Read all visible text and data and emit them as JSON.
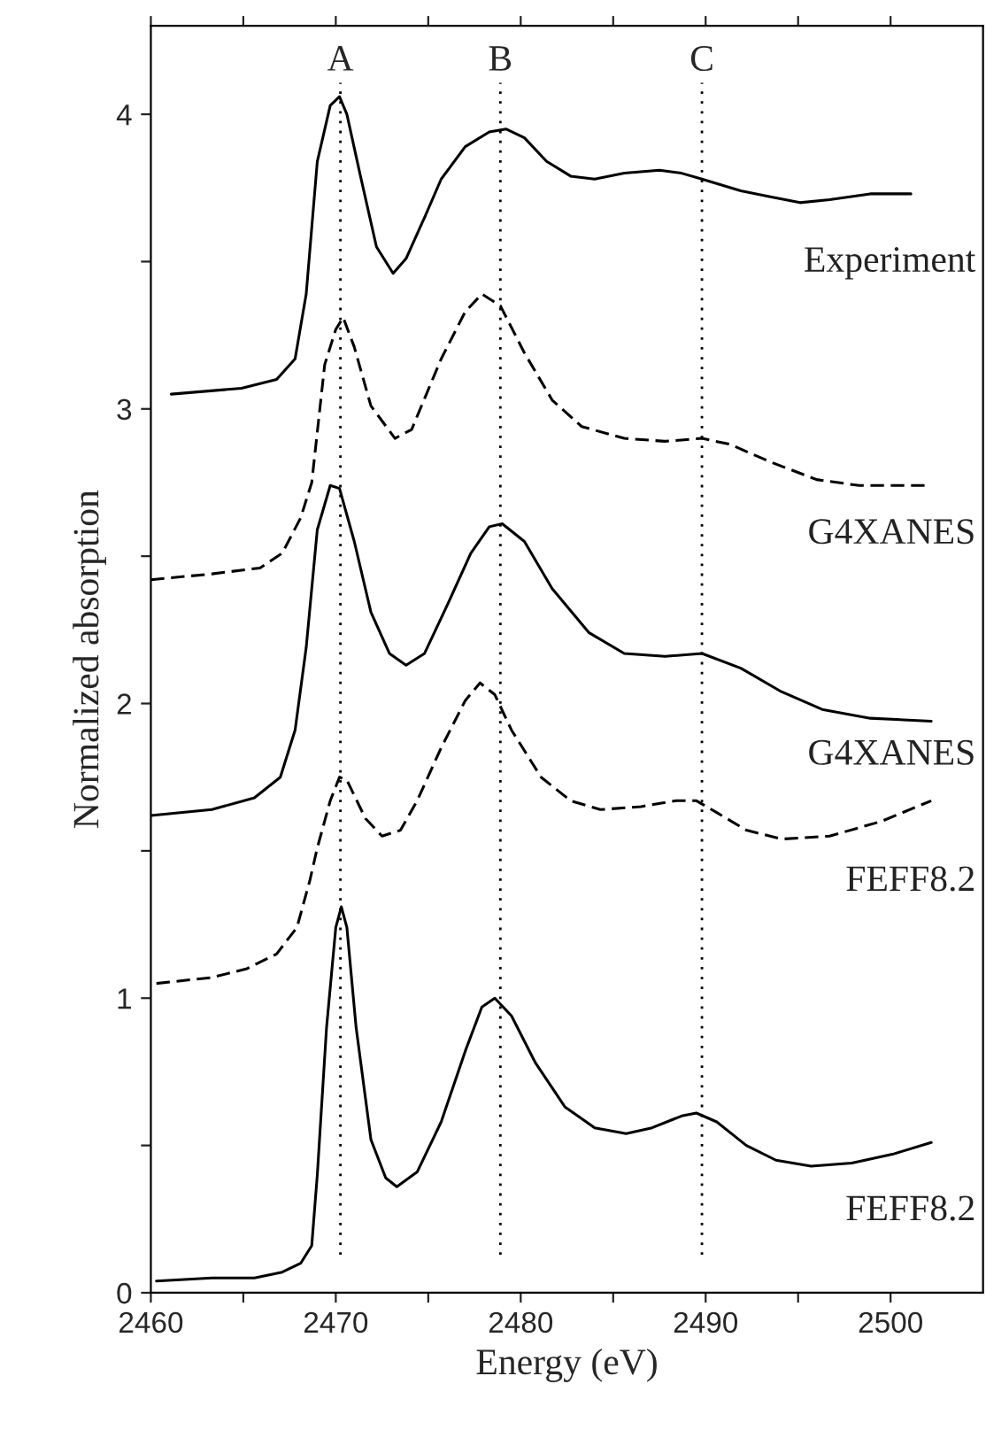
{
  "chart_data": {
    "type": "line",
    "xlabel": "Energy (eV)",
    "ylabel": "Normalized absorption",
    "xlim": [
      2460,
      2505
    ],
    "ylim": [
      0,
      4.3
    ],
    "xticks": [
      2460,
      {
        "value": 2465,
        "label": null
      },
      2470,
      {
        "value": 2475,
        "label": null
      },
      2480,
      {
        "value": 2485,
        "label": null
      },
      2490,
      {
        "value": 2495,
        "label": null
      },
      2500
    ],
    "yticks": [
      0,
      {
        "value": 0.5,
        "label": null
      },
      1,
      {
        "value": 1.5,
        "label": null
      },
      2,
      {
        "value": 2.5,
        "label": null
      },
      3,
      {
        "value": 3.5,
        "label": null
      },
      4
    ],
    "grid": false,
    "legend": false,
    "ref_lines": [
      {
        "axis": "x",
        "value": 2470.25,
        "label": "A",
        "line_style": "dotted",
        "color": "#000000"
      },
      {
        "axis": "x",
        "value": 2478.9,
        "label": "B",
        "line_style": "dotted",
        "color": "#000000"
      },
      {
        "axis": "x",
        "value": 2489.8,
        "label": "C",
        "line_style": "dotted",
        "color": "#000000"
      }
    ],
    "series": [
      {
        "name": "Experiment",
        "color": "#000000",
        "line_style": "solid",
        "x": [
          2461.1,
          2464.9,
          2466.8,
          2467.8,
          2468.4,
          2469.0,
          2469.7,
          2470.2,
          2470.6,
          2471.3,
          2472.2,
          2473.1,
          2473.8,
          2474.8,
          2475.7,
          2477.0,
          2478.3,
          2479.2,
          2480.2,
          2481.4,
          2482.7,
          2484.0,
          2485.6,
          2487.5,
          2488.7,
          2489.8,
          2491.9,
          2493.5,
          2495.1,
          2496.7,
          2498.9,
          2501.1
        ],
        "values": [
          3.05,
          3.07,
          3.1,
          3.17,
          3.39,
          3.84,
          4.03,
          4.06,
          4.0,
          3.8,
          3.55,
          3.46,
          3.51,
          3.65,
          3.78,
          3.89,
          3.94,
          3.95,
          3.92,
          3.84,
          3.79,
          3.78,
          3.8,
          3.81,
          3.8,
          3.78,
          3.74,
          3.72,
          3.7,
          3.71,
          3.73,
          3.73
        ]
      },
      {
        "name": "G4XANES",
        "color": "#000000",
        "line_style": "dashed",
        "x": [
          2460.0,
          2463.3,
          2465.9,
          2467.1,
          2468.1,
          2468.7,
          2469.4,
          2470.0,
          2470.4,
          2471.0,
          2471.9,
          2473.2,
          2474.1,
          2475.7,
          2477.0,
          2477.9,
          2478.9,
          2480.2,
          2481.7,
          2483.3,
          2485.6,
          2487.8,
          2489.8,
          2491.3,
          2493.5,
          2496.0,
          2498.3,
          2502.2
        ],
        "values": [
          2.42,
          2.44,
          2.46,
          2.51,
          2.63,
          2.75,
          3.15,
          3.27,
          3.31,
          3.21,
          3.01,
          2.9,
          2.93,
          3.17,
          3.33,
          3.39,
          3.35,
          3.19,
          3.03,
          2.94,
          2.9,
          2.89,
          2.9,
          2.88,
          2.82,
          2.76,
          2.74,
          2.74
        ]
      },
      {
        "name": "G4XANES",
        "color": "#000000",
        "line_style": "solid",
        "x": [
          2460.0,
          2463.3,
          2465.6,
          2467.0,
          2467.8,
          2468.4,
          2469.0,
          2469.7,
          2470.2,
          2471.0,
          2471.9,
          2472.9,
          2473.8,
          2474.8,
          2476.0,
          2477.3,
          2478.3,
          2479.0,
          2480.2,
          2481.7,
          2483.7,
          2485.6,
          2487.8,
          2489.8,
          2491.9,
          2494.1,
          2496.3,
          2498.9,
          2502.2
        ],
        "values": [
          1.62,
          1.64,
          1.68,
          1.75,
          1.91,
          2.19,
          2.59,
          2.74,
          2.73,
          2.55,
          2.31,
          2.17,
          2.13,
          2.17,
          2.33,
          2.51,
          2.6,
          2.61,
          2.55,
          2.39,
          2.24,
          2.17,
          2.16,
          2.17,
          2.12,
          2.04,
          1.98,
          1.95,
          1.94
        ]
      },
      {
        "name": "FEFF8.2",
        "color": "#000000",
        "line_style": "dashed",
        "x": [
          2460.3,
          2463.3,
          2465.2,
          2466.8,
          2467.9,
          2468.6,
          2469.0,
          2469.7,
          2470.2,
          2470.6,
          2471.6,
          2472.5,
          2473.5,
          2474.4,
          2475.7,
          2477.0,
          2477.8,
          2478.6,
          2479.5,
          2481.1,
          2482.7,
          2484.3,
          2486.5,
          2488.4,
          2489.5,
          2490.6,
          2492.2,
          2494.1,
          2496.7,
          2499.5,
          2502.2
        ],
        "values": [
          1.05,
          1.07,
          1.1,
          1.15,
          1.24,
          1.4,
          1.51,
          1.67,
          1.75,
          1.74,
          1.61,
          1.55,
          1.57,
          1.67,
          1.85,
          2.01,
          2.07,
          2.03,
          1.91,
          1.75,
          1.67,
          1.64,
          1.65,
          1.67,
          1.67,
          1.63,
          1.57,
          1.54,
          1.55,
          1.6,
          1.67
        ]
      },
      {
        "name": "FEFF8.2",
        "color": "#000000",
        "line_style": "solid",
        "x": [
          2460.3,
          2463.3,
          2465.6,
          2467.1,
          2468.1,
          2468.7,
          2469.0,
          2469.5,
          2470.0,
          2470.3,
          2470.6,
          2471.1,
          2471.9,
          2472.7,
          2473.3,
          2474.4,
          2475.7,
          2477.0,
          2477.9,
          2478.6,
          2479.5,
          2480.8,
          2482.4,
          2484.0,
          2485.7,
          2487.1,
          2488.7,
          2489.5,
          2490.6,
          2492.2,
          2493.8,
          2495.7,
          2497.9,
          2500.1,
          2502.2
        ],
        "values": [
          0.04,
          0.05,
          0.05,
          0.07,
          0.1,
          0.16,
          0.4,
          0.9,
          1.24,
          1.31,
          1.24,
          0.9,
          0.52,
          0.39,
          0.36,
          0.41,
          0.58,
          0.82,
          0.97,
          1.0,
          0.94,
          0.78,
          0.63,
          0.56,
          0.54,
          0.56,
          0.6,
          0.61,
          0.58,
          0.5,
          0.45,
          0.43,
          0.44,
          0.47,
          0.51
        ]
      }
    ]
  }
}
